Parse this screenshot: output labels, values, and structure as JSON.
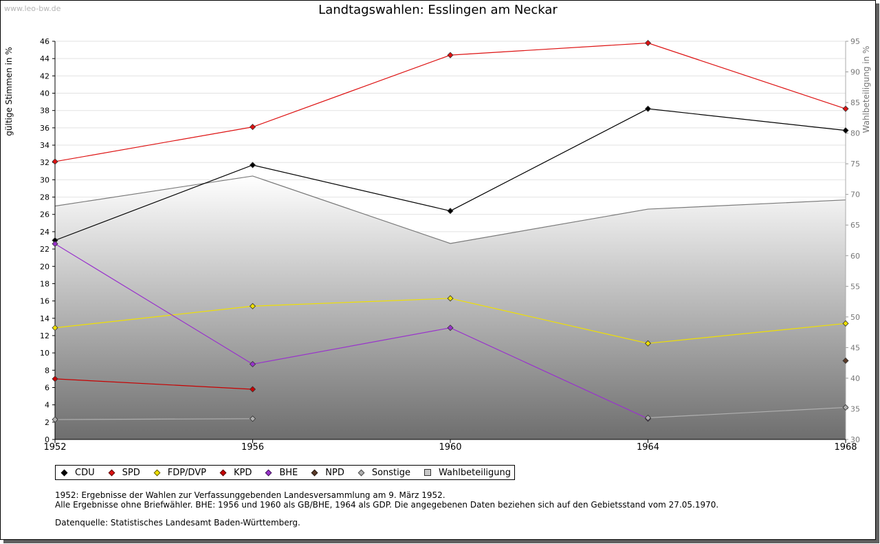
{
  "watermark": "www.leo-bw.de",
  "notes": {
    "line1": "1952: Ergebnisse der Wahlen zur Verfassunggebenden Landesversammlung am 9. März 1952.",
    "line2": "Alle Ergebnisse ohne Briefwähler. BHE: 1956 und 1960 als GB/BHE, 1964 als GDP. Die angegebenen Daten beziehen sich auf den Gebietsstand vom 27.05.1970.",
    "source": "Datenquelle: Statistisches Landesamt Baden-Württemberg."
  },
  "chart_data": {
    "type": "line",
    "title": "Landtagswahlen: Esslingen am Neckar",
    "ylabel": "gültige Stimmen in %",
    "y2label": "Wahlbeteiligung in %",
    "categories": [
      "1952",
      "1956",
      "1960",
      "1964",
      "1968"
    ],
    "ylim": [
      0,
      46
    ],
    "yticks": [
      "0",
      "2",
      "4",
      "6",
      "8",
      "10",
      "12",
      "14",
      "16",
      "18",
      "20",
      "22",
      "24",
      "26",
      "28",
      "30",
      "32",
      "34",
      "36",
      "38",
      "40",
      "42",
      "44",
      "46"
    ],
    "y2lim": [
      30,
      95
    ],
    "y2ticks": [
      "30",
      "35",
      "40",
      "45",
      "50",
      "55",
      "60",
      "65",
      "70",
      "75",
      "80",
      "85",
      "90",
      "95"
    ],
    "grid": true,
    "legend_position": "bottom",
    "series": [
      {
        "name": "CDU",
        "color": "#000000",
        "values": [
          23.0,
          31.7,
          26.4,
          38.2,
          35.7
        ]
      },
      {
        "name": "SPD",
        "color": "#dd1111",
        "values": [
          32.1,
          36.1,
          44.4,
          45.8,
          38.2
        ]
      },
      {
        "name": "FDP/DVP",
        "color": "#f0e000",
        "values": [
          12.9,
          15.4,
          16.3,
          11.1,
          13.4
        ]
      },
      {
        "name": "KPD",
        "color": "#c80000",
        "values": [
          7.0,
          5.8,
          null,
          null,
          null
        ]
      },
      {
        "name": "BHE",
        "color": "#9933cc",
        "values": [
          22.6,
          8.7,
          12.9,
          2.4,
          null
        ]
      },
      {
        "name": "NPD",
        "color": "#5a3a28",
        "values": [
          null,
          null,
          null,
          null,
          9.1
        ]
      },
      {
        "name": "Sonstige",
        "color": "#b0b0b0",
        "values": [
          2.3,
          2.4,
          null,
          2.5,
          3.7
        ]
      },
      {
        "name": "Wahlbeteiligung",
        "color": "#c8c8c8",
        "axis": "right",
        "values": [
          68.1,
          73.0,
          62.0,
          67.6,
          69.1
        ]
      }
    ]
  }
}
